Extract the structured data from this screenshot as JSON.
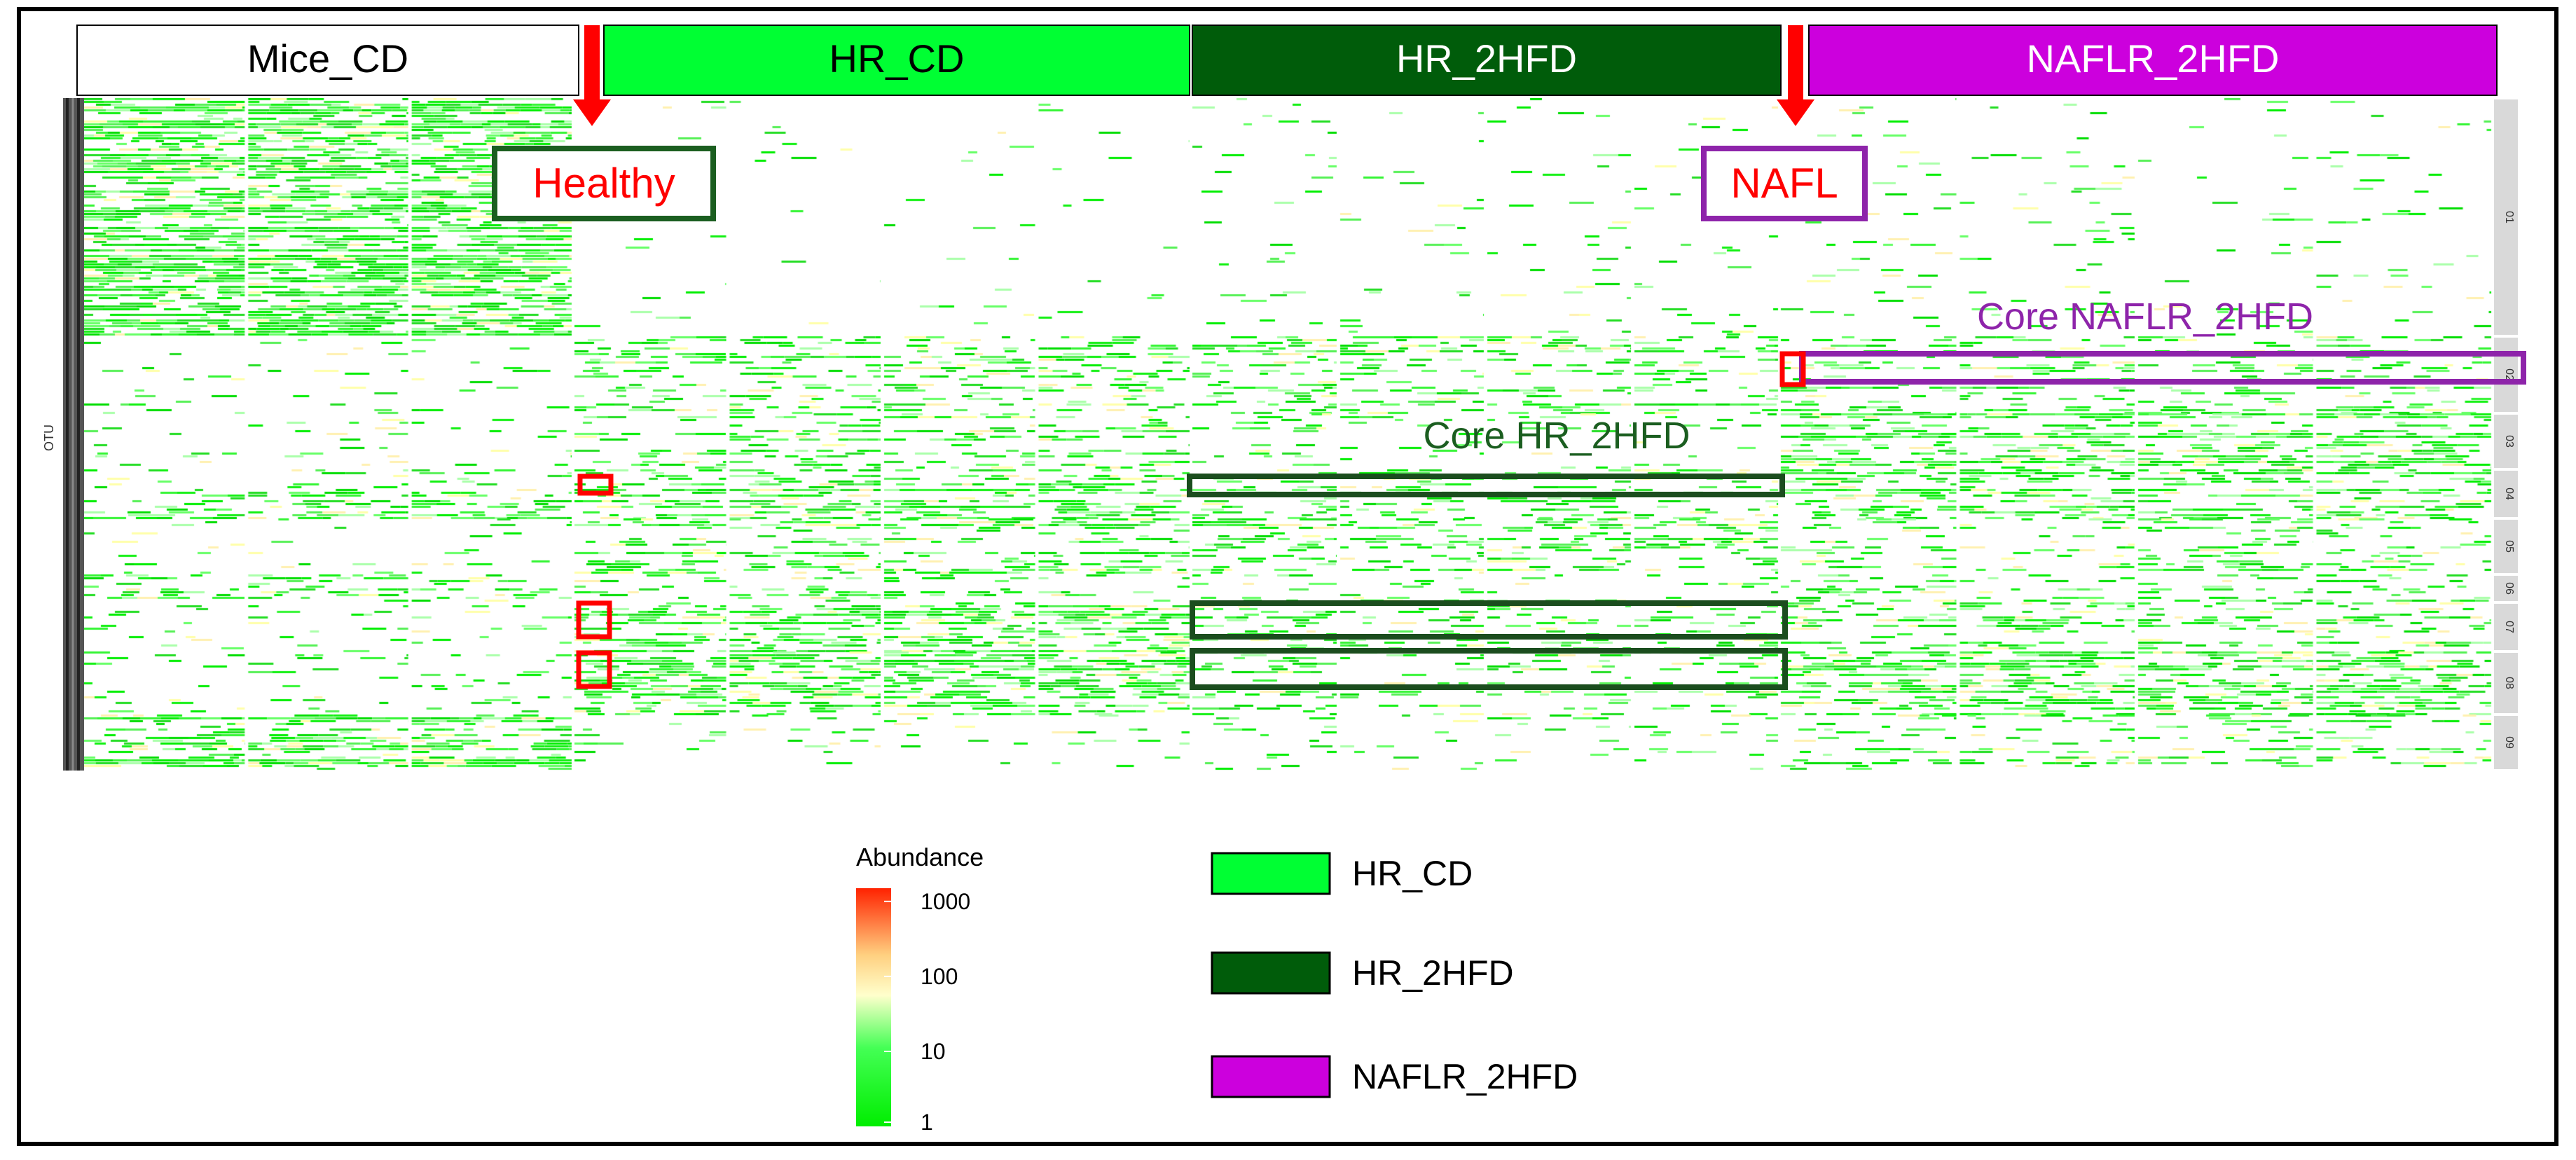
{
  "chart_data": {
    "type": "heatmap",
    "y_axis_label": "OTU",
    "groups": [
      {
        "label": "Mice_CD",
        "color": "#ffffff",
        "text_color": "#000000",
        "samples": 3
      },
      {
        "label": "HR_CD",
        "color": "#00ff33",
        "text_color": "#000000",
        "samples": 4
      },
      {
        "label": "HR_2HFD",
        "color": "#005c0a",
        "text_color": "#ffffff",
        "samples": 4
      },
      {
        "label": "NAFLR_2HFD",
        "color": "#cc00dd",
        "text_color": "#ffffff",
        "samples": 4
      }
    ],
    "clusters": [
      "01",
      "02",
      "03",
      "04",
      "05",
      "06",
      "07",
      "08",
      "09"
    ],
    "color_scale": {
      "title": "Abundance",
      "scale": "log",
      "ticks": [
        1,
        10,
        100,
        1000
      ],
      "tick_labels": [
        "1",
        "10",
        "100",
        "1000"
      ],
      "colors": [
        "#00ee00",
        "#ffffcc",
        "#ff2200"
      ]
    },
    "annotations": {
      "healthy": "Healthy",
      "nafl": "NAFL",
      "core_hr_2hfd": "Core HR_2HFD",
      "core_naflr_2hfd": "Core NAFLR_2HFD"
    },
    "legend": [
      {
        "label": "HR_CD",
        "color": "#00ff33"
      },
      {
        "label": "HR_2HFD",
        "color": "#005c0a"
      },
      {
        "label": "NAFLR_2HFD",
        "color": "#cc00dd"
      }
    ]
  }
}
